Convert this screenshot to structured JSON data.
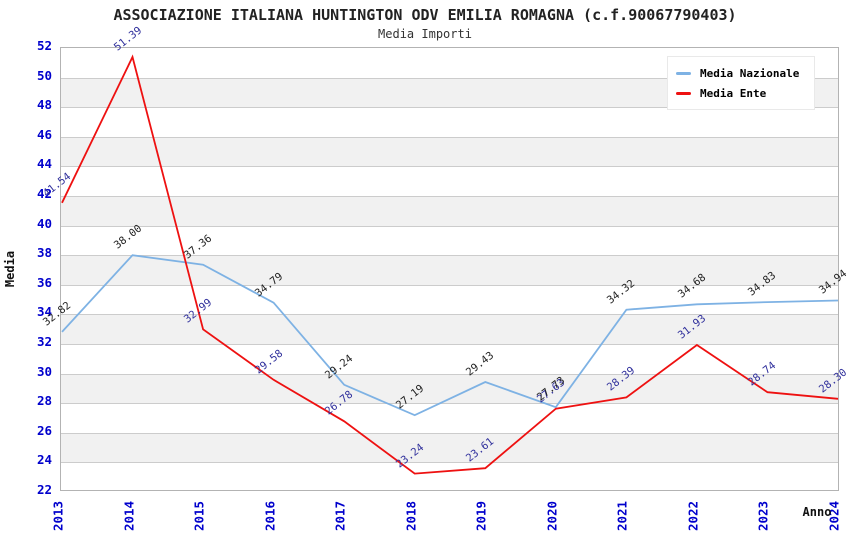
{
  "header": {
    "title": "ASSOCIAZIONE ITALIANA HUNTINGTON ODV EMILIA ROMAGNA (c.f.90067790403)",
    "subtitle": "Media Importi"
  },
  "axes": {
    "y_title": "Media",
    "x_title": "Anno"
  },
  "legend": {
    "position": "top-right",
    "items": [
      {
        "label": "Media Nazionale",
        "color": "#7EB2E4"
      },
      {
        "label": "Media Ente",
        "color": "#EE1111"
      }
    ]
  },
  "colors": {
    "tick_label": "#0000CC",
    "gridline": "#CCCCCC",
    "band_fill": "#F1F1F1",
    "plot_border": "#B3B3B3",
    "title_text": "#222222",
    "nazionale_line": "#7EB2E4",
    "ente_line": "#EE1111",
    "nazionale_value_label": "#222222",
    "ente_value_label": "#30309C"
  },
  "chart_data": {
    "type": "line",
    "title": "ASSOCIAZIONE ITALIANA HUNTINGTON ODV EMILIA ROMAGNA (c.f.90067790403)",
    "subtitle": "Media Importi",
    "xlabel": "Anno",
    "ylabel": "Media",
    "categories": [
      "2013",
      "2014",
      "2015",
      "2016",
      "2017",
      "2018",
      "2019",
      "2020",
      "2021",
      "2022",
      "2023",
      "2024"
    ],
    "series": [
      {
        "name": "Media Nazionale",
        "color": "#7EB2E4",
        "label_color": "#222222",
        "values": [
          32.82,
          38.0,
          37.36,
          34.79,
          29.24,
          27.19,
          29.43,
          27.73,
          34.32,
          34.68,
          34.83,
          34.94
        ]
      },
      {
        "name": "Media Ente",
        "color": "#EE1111",
        "label_color": "#30309C",
        "values": [
          41.54,
          51.39,
          32.99,
          29.58,
          26.78,
          23.24,
          23.61,
          27.63,
          28.39,
          31.93,
          28.74,
          28.3
        ]
      }
    ],
    "ylim": [
      22,
      52
    ],
    "y_tick_step": 2,
    "grid": "horizontal-only",
    "alternating_bands": true,
    "legend_position": "top-right",
    "value_labels": "all-points, rotated, 2 decimals"
  }
}
